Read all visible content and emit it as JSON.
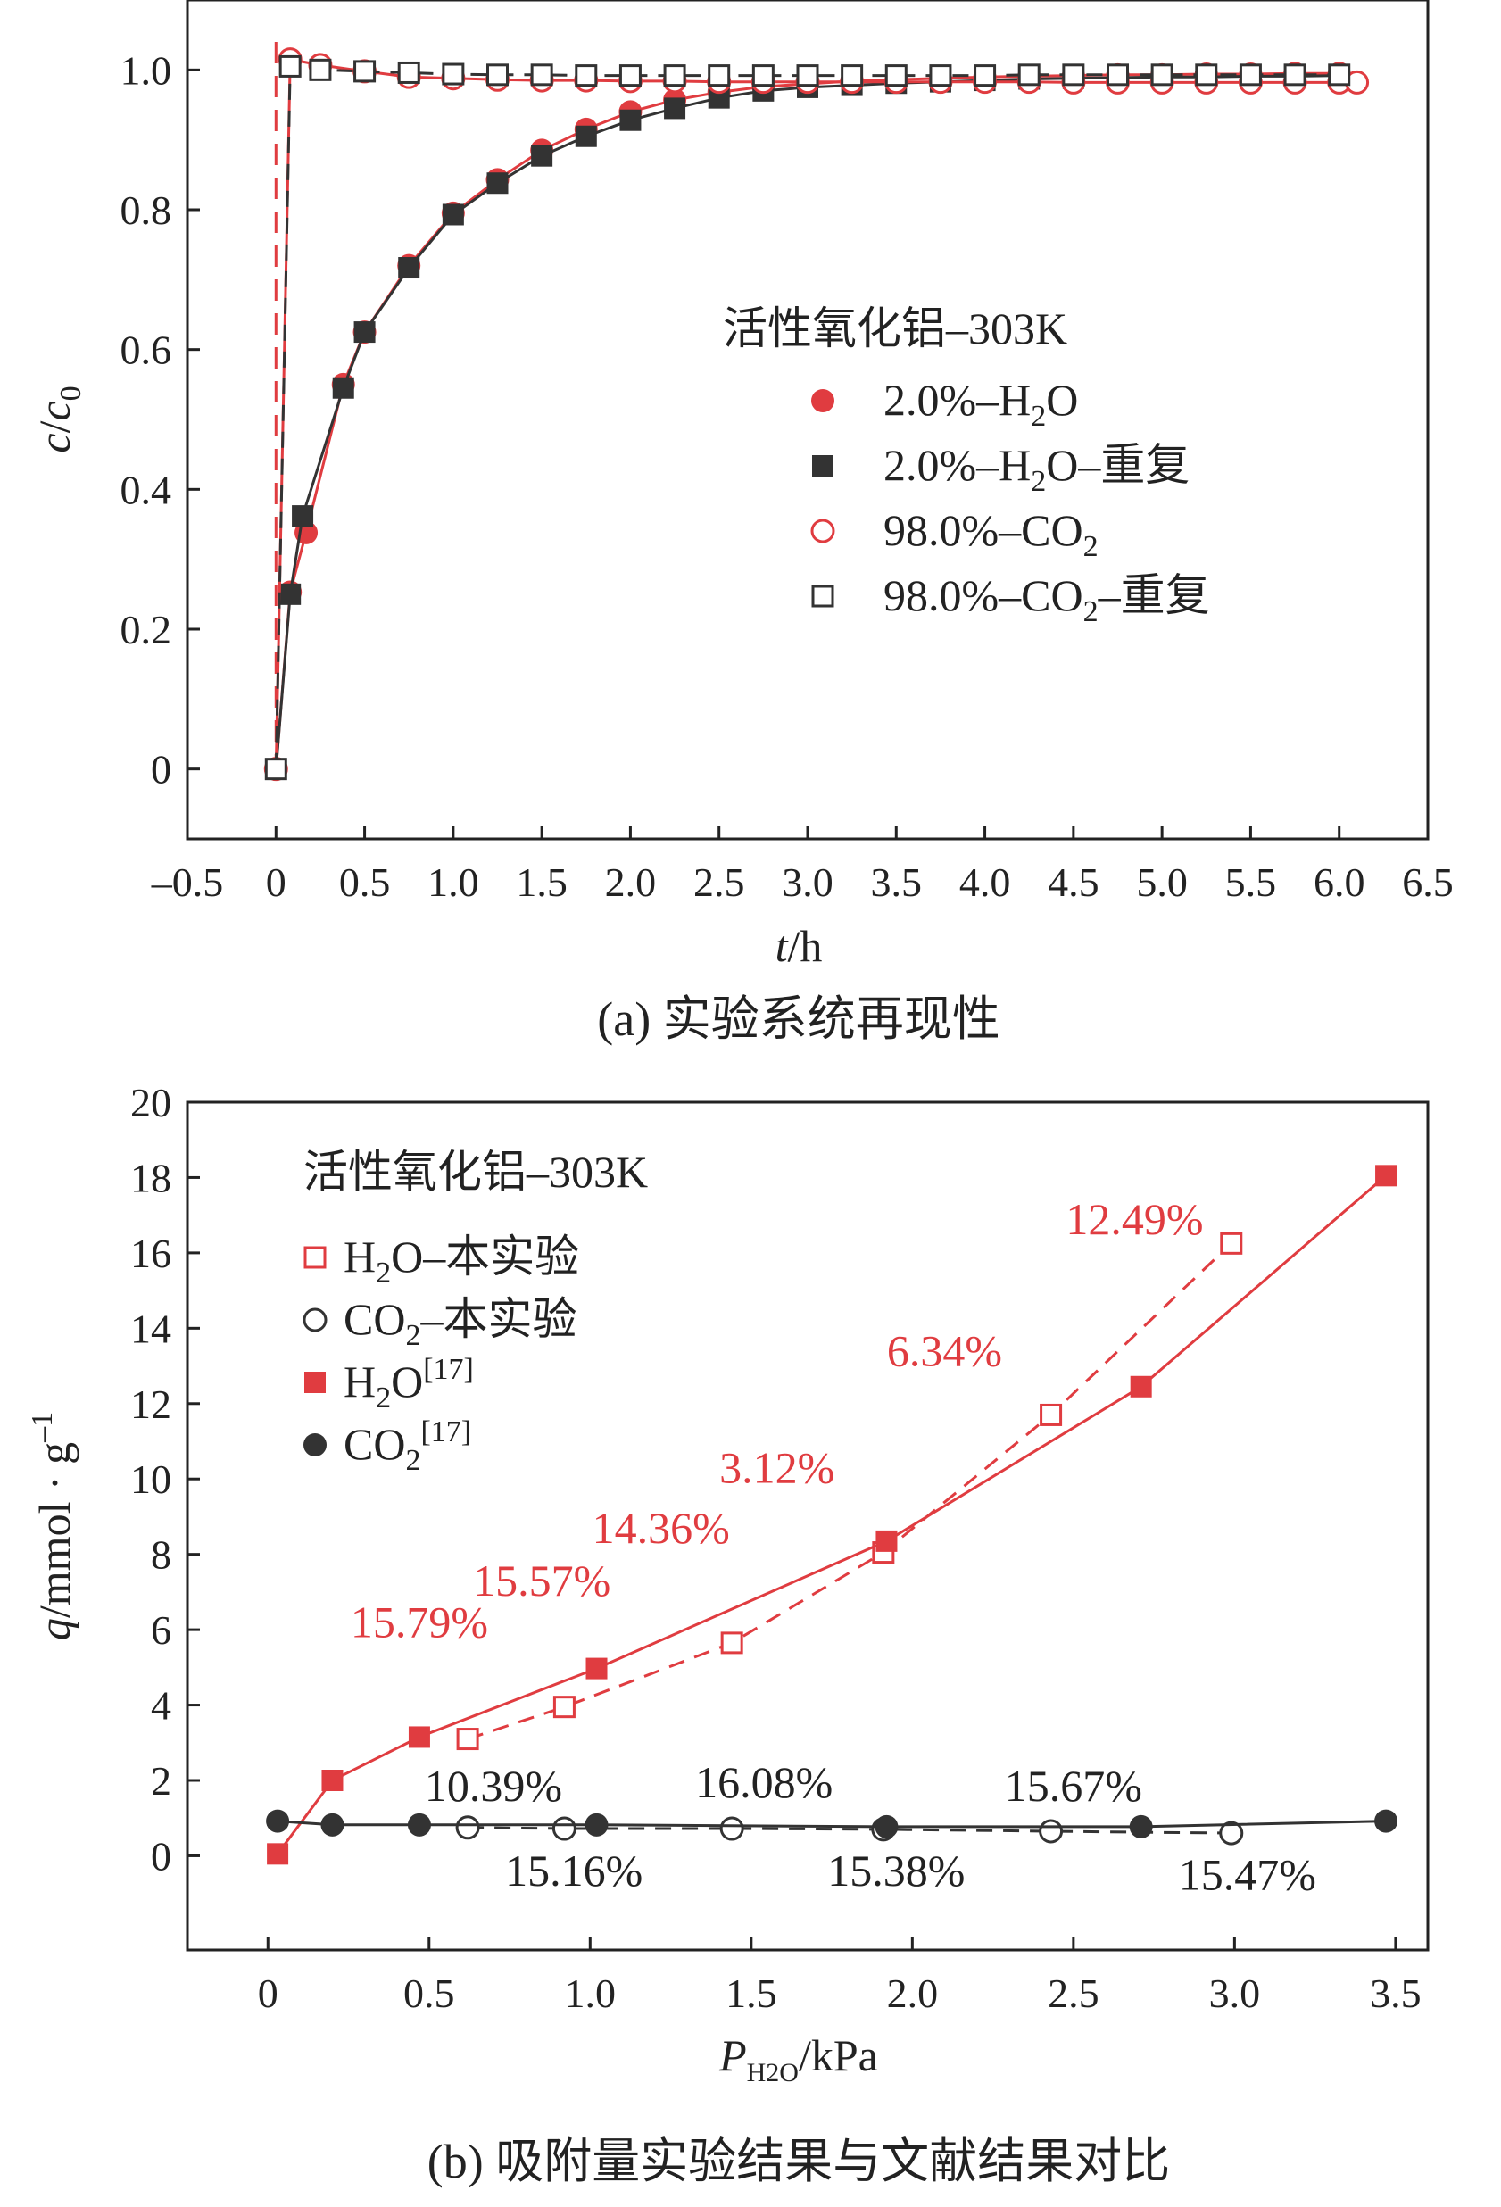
{
  "chart_data": [
    {
      "type": "line",
      "caption": "(a) 实验系统再现性",
      "title": "活性氧化铝–303K",
      "xlabel_italic": "t",
      "xlabel_rest": "/h",
      "ylabel_parts": [
        "c",
        "/",
        "c",
        "0"
      ],
      "xlim": [
        -0.5,
        6.5
      ],
      "ylim": [
        -0.1,
        1.1
      ],
      "xticks": [
        -0.5,
        0,
        0.5,
        1.0,
        1.5,
        2.0,
        2.5,
        3.0,
        3.5,
        4.0,
        4.5,
        5.0,
        5.5,
        6.0,
        6.5
      ],
      "xtick_labels": [
        "–0.5",
        "0",
        "0.5",
        "1.0",
        "1.5",
        "2.0",
        "2.5",
        "3.0",
        "3.5",
        "4.0",
        "4.5",
        "5.0",
        "5.5",
        "6.0",
        "6.5"
      ],
      "yticks": [
        0,
        0.2,
        0.4,
        0.6,
        0.8,
        1.0
      ],
      "ytick_labels": [
        "0",
        "0.2",
        "0.4",
        "0.6",
        "0.8",
        "1.0"
      ],
      "legend_placement": "right-middle",
      "series": [
        {
          "name": "2.0%–H2O",
          "legend_main": "2.0%–H",
          "legend_sub": "2",
          "legend_tail": "O",
          "marker": "filled-circle",
          "color": "#e03c40",
          "line": "solid",
          "x": [
            0,
            0.08,
            0.17,
            0.38,
            0.5,
            0.75,
            1.0,
            1.25,
            1.5,
            1.75,
            2.0,
            2.25,
            2.5,
            2.75,
            3.0,
            3.25,
            3.5,
            3.75,
            4.0,
            4.25,
            4.5,
            4.75,
            5.0,
            5.25,
            5.5,
            5.75,
            6.0
          ],
          "y": [
            0,
            0.253,
            0.338,
            0.55,
            0.625,
            0.72,
            0.795,
            0.843,
            0.885,
            0.915,
            0.94,
            0.957,
            0.968,
            0.976,
            0.98,
            0.984,
            0.986,
            0.988,
            0.99,
            0.991,
            0.992,
            0.993,
            0.993,
            0.994,
            0.994,
            0.995,
            0.995
          ]
        },
        {
          "name": "2.0%–H2O–重复",
          "legend_main": "2.0%–H",
          "legend_sub": "2",
          "legend_tail": "O–重复",
          "marker": "filled-square",
          "color": "#333333",
          "line": "solid",
          "x": [
            0,
            0.08,
            0.15,
            0.38,
            0.5,
            0.75,
            1.0,
            1.25,
            1.5,
            1.75,
            2.0,
            2.25,
            2.5,
            2.75,
            3.0,
            3.25,
            3.5,
            3.75,
            4.0,
            4.25,
            4.5,
            4.75,
            5.0,
            5.25,
            5.5,
            5.75,
            6.0
          ],
          "y": [
            0,
            0.25,
            0.362,
            0.545,
            0.625,
            0.717,
            0.793,
            0.838,
            0.877,
            0.905,
            0.928,
            0.945,
            0.96,
            0.97,
            0.975,
            0.978,
            0.981,
            0.983,
            0.985,
            0.987,
            0.988,
            0.989,
            0.99,
            0.99,
            0.991,
            0.991,
            0.992
          ]
        },
        {
          "name": "98.0%–CO2",
          "legend_main": "98.0%–CO",
          "legend_sub": "2",
          "legend_tail": "",
          "marker": "open-circle",
          "color": "#e03c40",
          "line": "solid",
          "x": [
            0,
            0.08,
            0.25,
            0.5,
            0.75,
            1.0,
            1.25,
            1.5,
            1.75,
            2.0,
            2.25,
            2.5,
            2.75,
            3.0,
            3.25,
            3.5,
            3.75,
            4.0,
            4.25,
            4.5,
            4.75,
            5.0,
            5.25,
            5.5,
            5.75,
            6.0,
            6.1
          ],
          "y": [
            0,
            1.015,
            1.007,
            0.998,
            0.99,
            0.988,
            0.986,
            0.985,
            0.985,
            0.984,
            0.984,
            0.983,
            0.983,
            0.983,
            0.983,
            0.983,
            0.983,
            0.983,
            0.983,
            0.982,
            0.982,
            0.982,
            0.982,
            0.982,
            0.982,
            0.982,
            0.982
          ]
        },
        {
          "name": "98.0%–CO2–重复",
          "legend_main": "98.0%–CO",
          "legend_sub": "2",
          "legend_tail": "–重复",
          "marker": "open-square",
          "color": "#333333",
          "line": "dashed",
          "x": [
            0,
            0.08,
            0.25,
            0.5,
            0.75,
            1.0,
            1.25,
            1.5,
            1.75,
            2.0,
            2.25,
            2.5,
            2.75,
            3.0,
            3.25,
            3.5,
            3.75,
            4.0,
            4.25,
            4.5,
            4.75,
            5.0,
            5.25,
            5.5,
            5.75,
            6.0
          ],
          "y": [
            0,
            1.005,
            1.0,
            0.998,
            0.996,
            0.994,
            0.993,
            0.993,
            0.992,
            0.992,
            0.992,
            0.992,
            0.992,
            0.992,
            0.992,
            0.992,
            0.992,
            0.992,
            0.993,
            0.993,
            0.993,
            0.993,
            0.993,
            0.993,
            0.993,
            0.993
          ]
        }
      ],
      "reference_line": {
        "x": 0,
        "style": "dashed",
        "color": "#e03c40"
      }
    },
    {
      "type": "line",
      "caption": "(b) 吸附量实验结果与文献结果对比",
      "title": "活性氧化铝–303K",
      "xlabel_italic": "P",
      "xlabel_sub": "H2O",
      "xlabel_rest": "/kPa",
      "ylabel_italic": "q",
      "ylabel_rest": "/mmol · g",
      "ylabel_sup": "–1",
      "xlim": [
        -0.25,
        3.6
      ],
      "ylim": [
        -2.5,
        20
      ],
      "xticks": [
        0,
        0.5,
        1.0,
        1.5,
        2.0,
        2.5,
        3.0,
        3.5
      ],
      "xtick_labels": [
        "0",
        "0.5",
        "1.0",
        "1.5",
        "2.0",
        "2.5",
        "3.0",
        "3.5"
      ],
      "yticks": [
        0,
        2,
        4,
        6,
        8,
        10,
        12,
        14,
        16,
        18,
        20
      ],
      "ytick_labels": [
        "0",
        "2",
        "4",
        "6",
        "8",
        "10",
        "12",
        "14",
        "16",
        "18",
        "20"
      ],
      "legend_placement": "top-left",
      "series": [
        {
          "name": "H2O–本实验",
          "legend_main": "H",
          "legend_sub": "2",
          "legend_tail": "O–本实验",
          "marker": "open-square",
          "color": "#e03c40",
          "line": "dashed",
          "x": [
            0.62,
            0.92,
            1.44,
            1.91,
            2.43,
            2.99
          ],
          "y": [
            3.1,
            3.95,
            5.65,
            8.05,
            11.7,
            16.25
          ]
        },
        {
          "name": "CO2–本实验",
          "legend_main": "CO",
          "legend_sub": "2",
          "legend_tail": "–本实验",
          "marker": "open-circle",
          "color": "#333333",
          "line": "dashed",
          "x": [
            0.62,
            0.92,
            1.44,
            1.91,
            2.43,
            2.99
          ],
          "y": [
            0.75,
            0.72,
            0.72,
            0.7,
            0.65,
            0.6
          ]
        },
        {
          "name": "H2O[17]",
          "legend_main": "H",
          "legend_sub": "2",
          "legend_tail": "O",
          "legend_sup": "[17]",
          "marker": "filled-square",
          "color": "#e03c40",
          "line": "solid",
          "x": [
            0.03,
            0.2,
            0.47,
            1.02,
            1.92,
            2.71,
            3.47
          ],
          "y": [
            0.05,
            2.0,
            3.15,
            4.97,
            8.35,
            12.45,
            18.05
          ]
        },
        {
          "name": "CO2[17]",
          "legend_main": "CO",
          "legend_sub": "2",
          "legend_tail": "",
          "legend_sup": "[17]",
          "marker": "filled-circle",
          "color": "#333333",
          "line": "solid",
          "x": [
            0.03,
            0.2,
            0.47,
            1.02,
            1.92,
            2.71,
            3.47
          ],
          "y": [
            0.92,
            0.82,
            0.82,
            0.82,
            0.77,
            0.77,
            0.92
          ]
        }
      ],
      "annotations_red": [
        {
          "text": "15.79%",
          "x": 0.47,
          "y": 5.8
        },
        {
          "text": "15.57%",
          "x": 0.85,
          "y": 6.9
        },
        {
          "text": "14.36%",
          "x": 1.22,
          "y": 8.3
        },
        {
          "text": "3.12%",
          "x": 1.58,
          "y": 9.9
        },
        {
          "text": "6.34%",
          "x": 2.1,
          "y": 13.0
        },
        {
          "text": "12.49%",
          "x": 2.69,
          "y": 16.5
        }
      ],
      "annotations_black": [
        {
          "text": "10.39%",
          "x": 0.7,
          "y": 1.45
        },
        {
          "text": "15.16%",
          "x": 0.95,
          "y": -0.8
        },
        {
          "text": "16.08%",
          "x": 1.54,
          "y": 1.55
        },
        {
          "text": "15.38%",
          "x": 1.95,
          "y": -0.8
        },
        {
          "text": "15.67%",
          "x": 2.5,
          "y": 1.45
        },
        {
          "text": "15.47%",
          "x": 3.04,
          "y": -0.9
        }
      ]
    }
  ]
}
